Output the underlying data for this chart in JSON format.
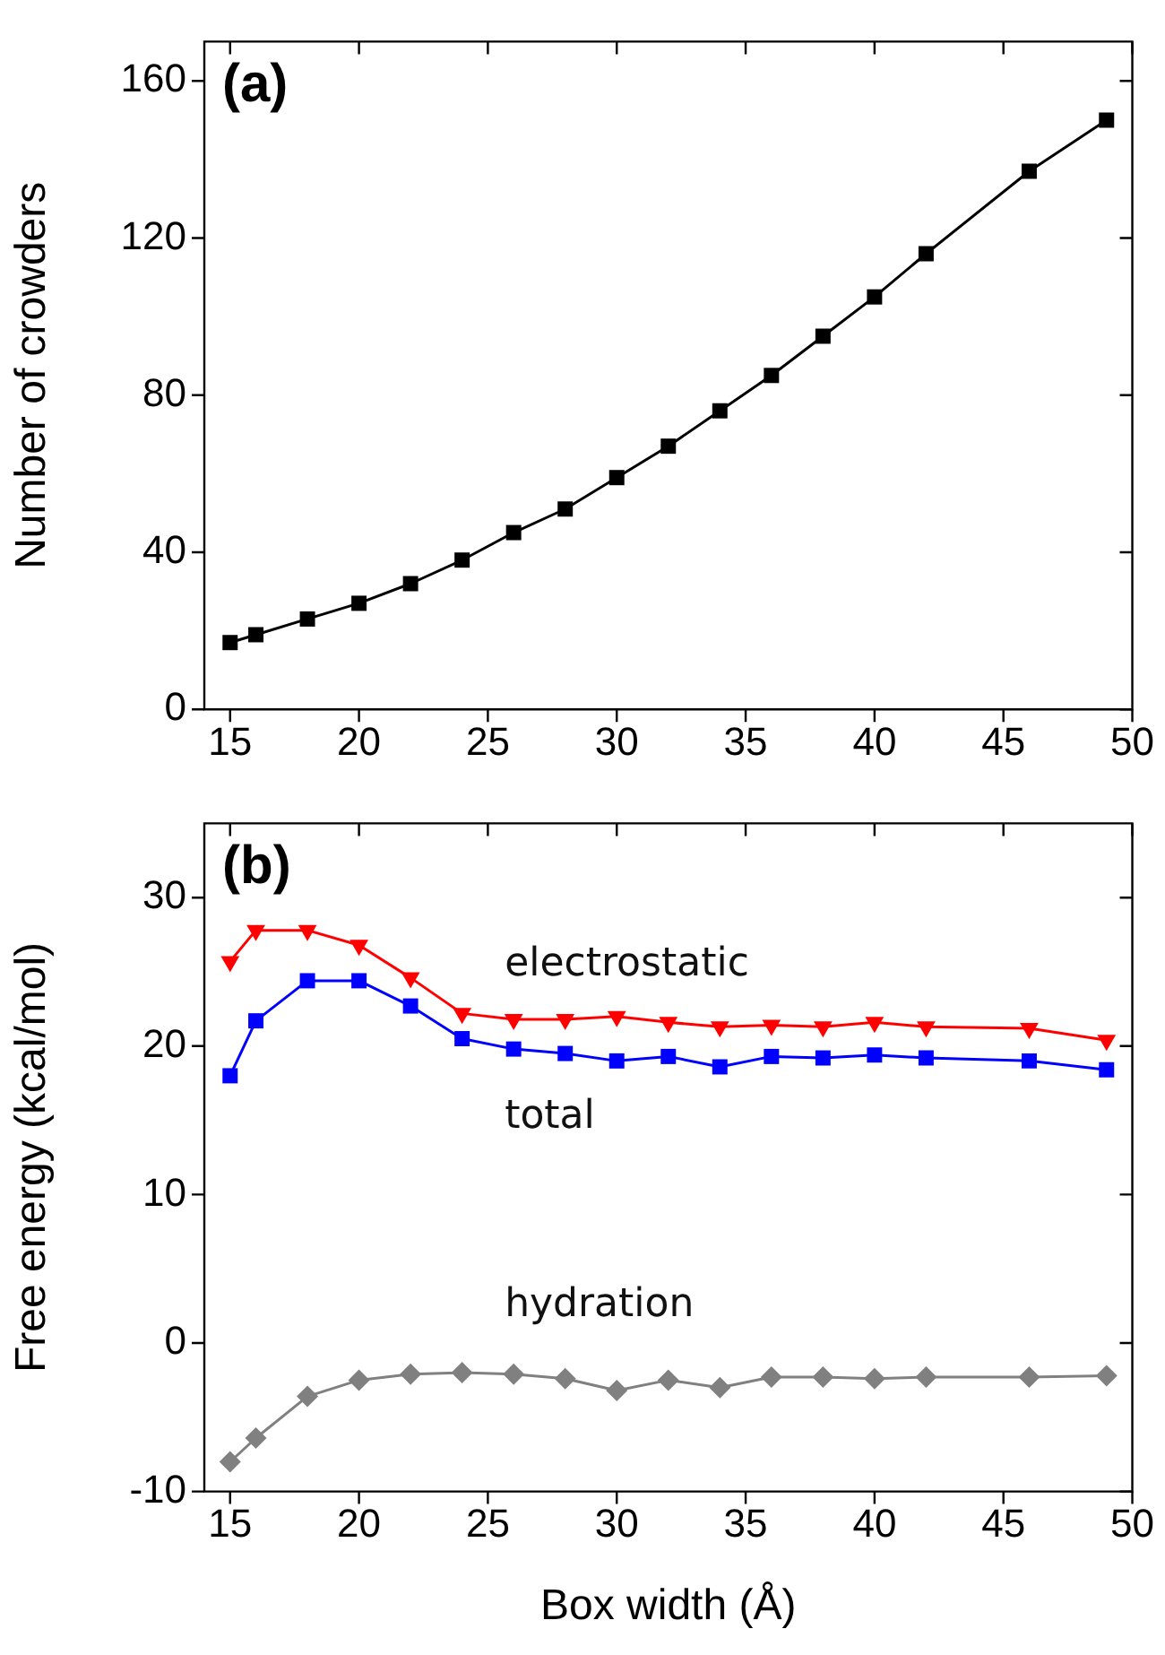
{
  "chart_data": [
    {
      "type": "line",
      "annotations": [
        "(a)"
      ],
      "ylabel": "Number of crowders",
      "x": [
        15,
        16,
        18,
        20,
        22,
        24,
        26,
        28,
        30,
        32,
        34,
        36,
        38,
        40,
        42,
        46,
        49
      ],
      "series": [
        {
          "color": "#000000",
          "marker": "square",
          "values": [
            17,
            19,
            23,
            27,
            32,
            38,
            45,
            51,
            59,
            67,
            76,
            85,
            95,
            105,
            116,
            137,
            150
          ]
        }
      ],
      "xlim": [
        14,
        50
      ],
      "xticks": [
        15,
        20,
        25,
        30,
        35,
        40,
        45,
        50
      ],
      "ylim": [
        0,
        170
      ],
      "yticks": [
        0,
        40,
        80,
        120,
        160
      ],
      "grid": false,
      "legend": false,
      "line_style": "solid"
    },
    {
      "type": "line",
      "annotations": [
        "(b)"
      ],
      "ylabel": "Free energy (kcal/mol)",
      "xlabel": "Box width (Å)",
      "x": [
        15,
        16,
        18,
        20,
        22,
        24,
        26,
        28,
        30,
        32,
        34,
        36,
        38,
        40,
        42,
        46,
        49
      ],
      "series": [
        {
          "name": "electrostatic",
          "color": "#ff0000",
          "marker": "triangle",
          "values": [
            25.7,
            27.8,
            27.8,
            26.8,
            24.6,
            22.2,
            21.8,
            21.8,
            22.0,
            21.6,
            21.3,
            21.4,
            21.3,
            21.6,
            21.3,
            21.2,
            20.4
          ]
        },
        {
          "name": "total",
          "color": "#0000ff",
          "marker": "square",
          "values": [
            18.0,
            21.7,
            24.4,
            24.4,
            22.7,
            20.5,
            19.8,
            19.5,
            19.0,
            19.3,
            18.6,
            19.3,
            19.2,
            19.4,
            19.2,
            19.0,
            18.4
          ]
        },
        {
          "name": "hydration",
          "color": "#808080",
          "marker": "diamond",
          "values": [
            -8.0,
            -6.4,
            -3.6,
            -2.5,
            -2.1,
            -2.0,
            -2.1,
            -2.4,
            -3.2,
            -2.5,
            -3.0,
            -2.3,
            -2.3,
            -2.4,
            -2.3,
            -2.3,
            -2.2
          ]
        }
      ],
      "xlim": [
        14,
        50
      ],
      "xticks": [
        15,
        20,
        25,
        30,
        35,
        40,
        45,
        50
      ],
      "ylim": [
        -10,
        35
      ],
      "yticks": [
        -10,
        0,
        10,
        20,
        30
      ],
      "grid": false,
      "legend": false,
      "line_style": "solid"
    }
  ]
}
